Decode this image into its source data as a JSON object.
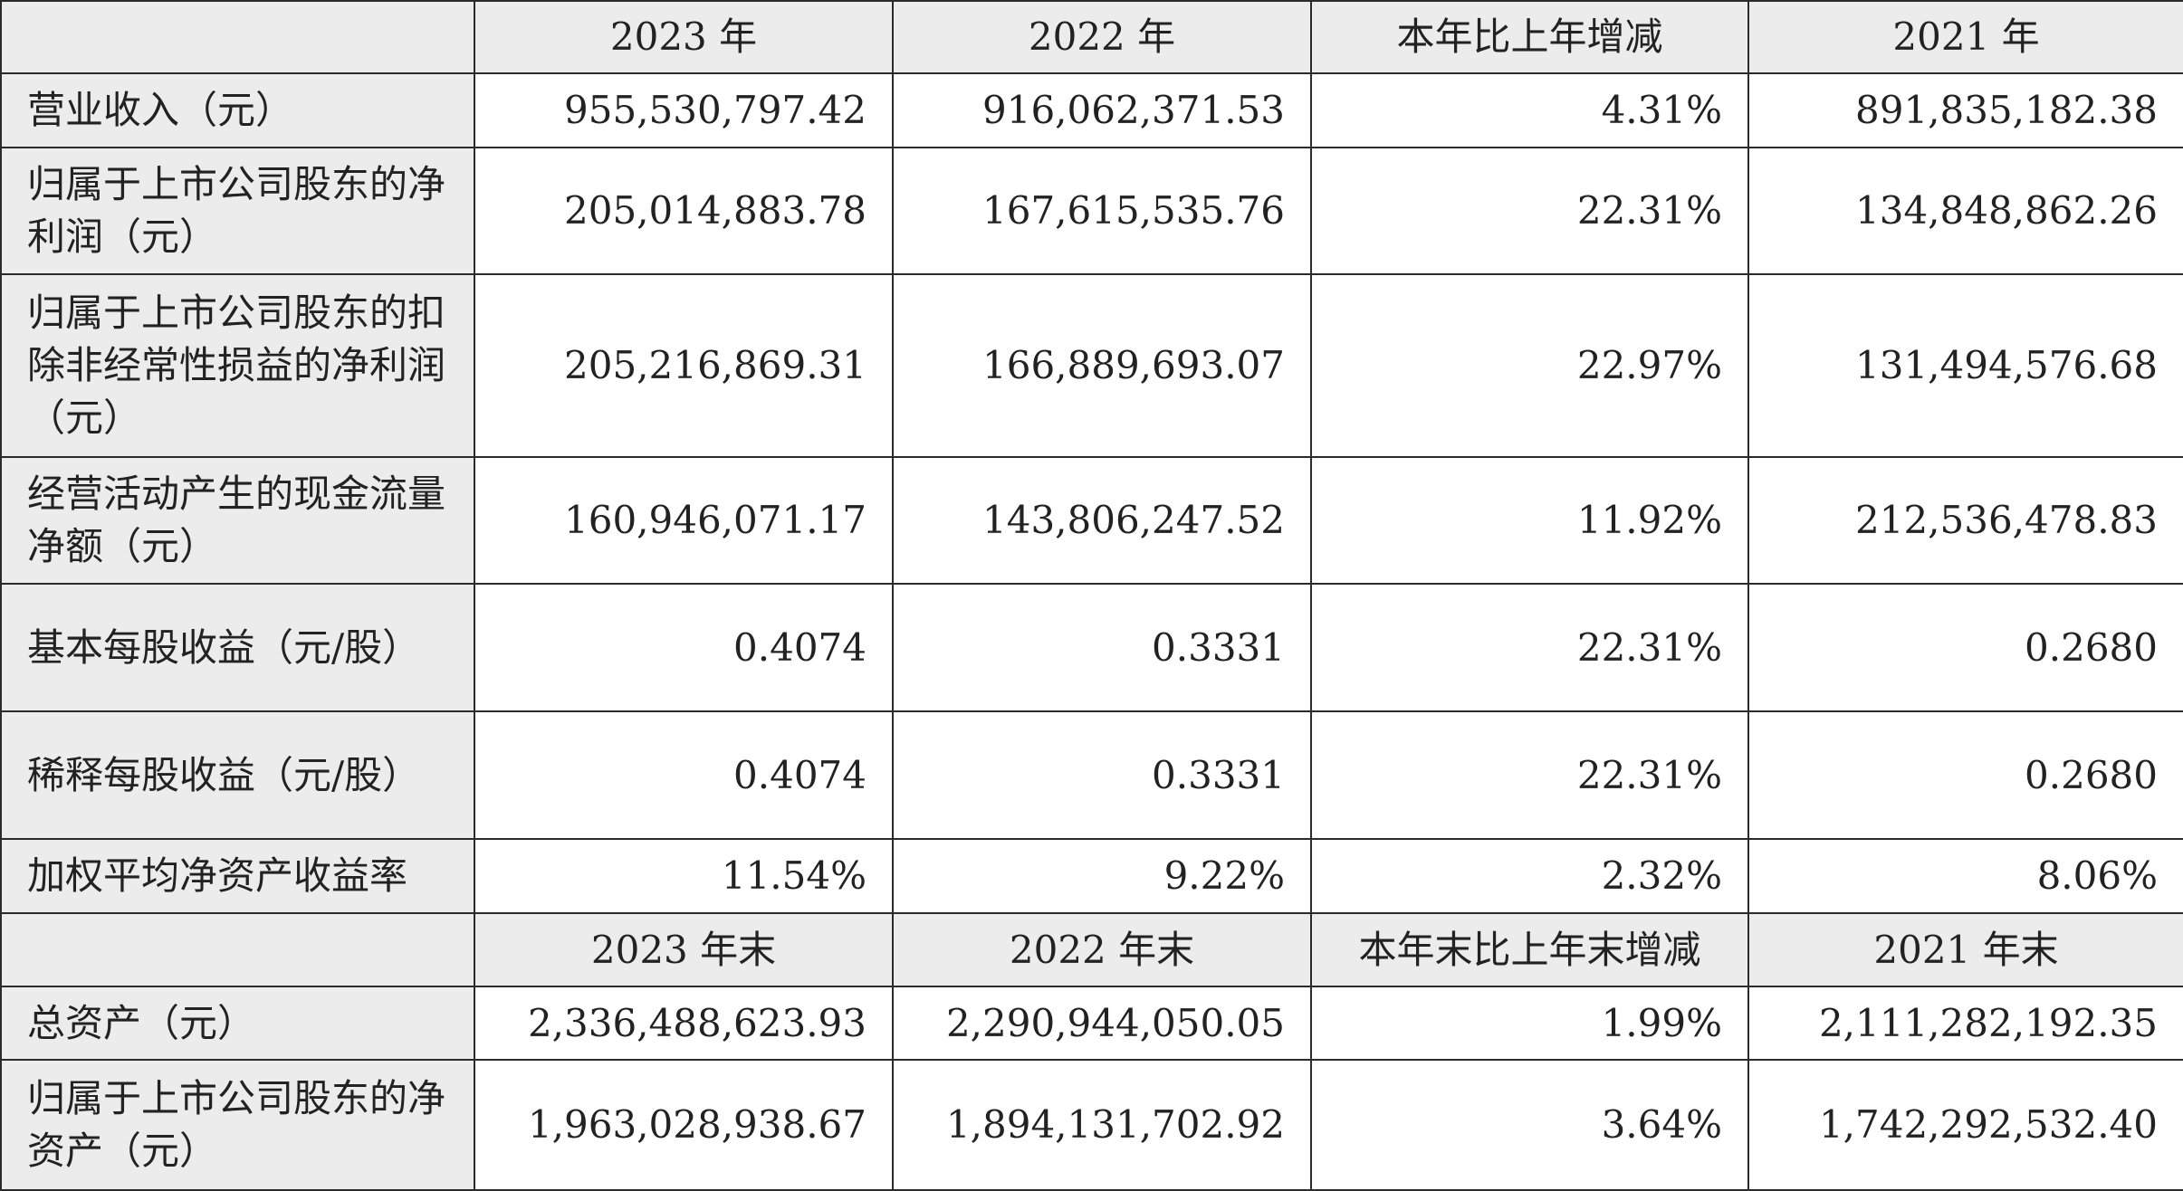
{
  "header1": [
    "",
    "2023 年",
    "2022 年",
    "本年比上年增减",
    "2021 年"
  ],
  "header2": [
    "",
    "2023 年末",
    "2022 年末",
    "本年末比上年末增减",
    "2021 年末"
  ],
  "rows1": [
    {
      "label": "营业收入（元）",
      "values": [
        "955,530,797.42",
        "916,062,371.53",
        "4.31%",
        "891,835,182.38"
      ]
    },
    {
      "label": "归属于上市公司股东的净利润（元）",
      "values": [
        "205,014,883.78",
        "167,615,535.76",
        "22.31%",
        "134,848,862.26"
      ]
    },
    {
      "label": "归属于上市公司股东的扣除非经常性损益的净利润（元）",
      "values": [
        "205,216,869.31",
        "166,889,693.07",
        "22.97%",
        "131,494,576.68"
      ]
    },
    {
      "label": "经营活动产生的现金流量净额（元）",
      "values": [
        "160,946,071.17",
        "143,806,247.52",
        "11.92%",
        "212,536,478.83"
      ]
    },
    {
      "label": "基本每股收益（元/股）",
      "values": [
        "0.4074",
        "0.3331",
        "22.31%",
        "0.2680"
      ]
    },
    {
      "label": "稀释每股收益（元/股）",
      "values": [
        "0.4074",
        "0.3331",
        "22.31%",
        "0.2680"
      ]
    },
    {
      "label": "加权平均净资产收益率",
      "values": [
        "11.54%",
        "9.22%",
        "2.32%",
        "8.06%"
      ]
    }
  ],
  "rows2": [
    {
      "label": "总资产（元）",
      "values": [
        "2,336,488,623.93",
        "2,290,944,050.05",
        "1.99%",
        "2,111,282,192.35"
      ]
    },
    {
      "label": "归属于上市公司股东的净资产（元）",
      "values": [
        "1,963,028,938.67",
        "1,894,131,702.92",
        "3.64%",
        "1,742,292,532.40"
      ]
    }
  ]
}
